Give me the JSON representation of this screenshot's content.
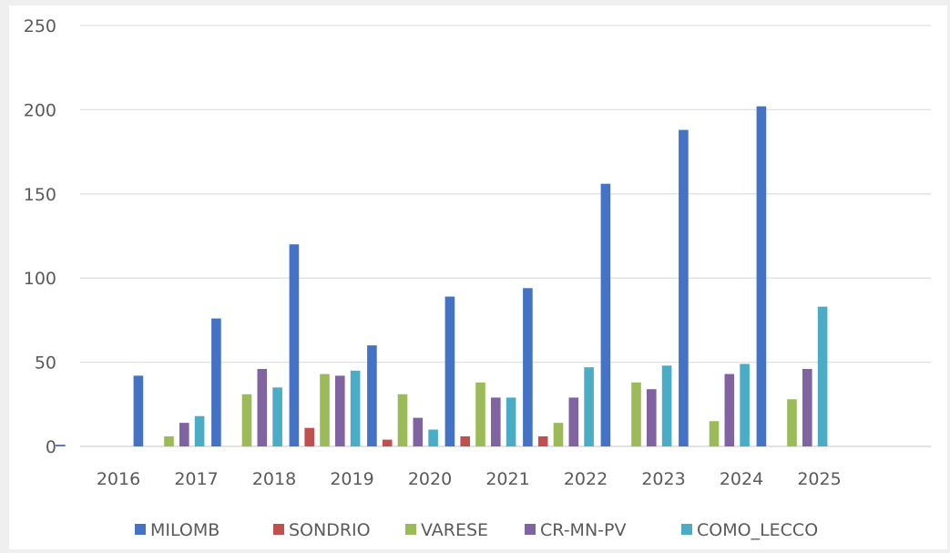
{
  "chart_data": {
    "type": "bar",
    "categories": [
      "2016",
      "2017",
      "2018",
      "2019",
      "2020",
      "2021",
      "2022",
      "2023",
      "2024",
      "2025"
    ],
    "series": [
      {
        "name": "MILOMB",
        "color": "#4472c4",
        "values": [
          1,
          42,
          76,
          120,
          60,
          89,
          94,
          156,
          188,
          202
        ]
      },
      {
        "name": "SONDRIO",
        "color": "#c0504d",
        "values": [
          0,
          0,
          0,
          11,
          4,
          6,
          6,
          0,
          0,
          0
        ]
      },
      {
        "name": "VARESE",
        "color": "#9bbb59",
        "values": [
          0,
          6,
          31,
          43,
          31,
          38,
          14,
          38,
          15,
          28
        ]
      },
      {
        "name": "CR-MN-PV",
        "color": "#8064a2",
        "values": [
          0,
          14,
          46,
          42,
          17,
          29,
          29,
          34,
          43,
          46
        ]
      },
      {
        "name": "COMO_LECCO",
        "color": "#4bacc6",
        "values": [
          0,
          18,
          35,
          45,
          10,
          29,
          47,
          48,
          49,
          83
        ]
      }
    ],
    "ylim": [
      0,
      250
    ],
    "yticks": [
      "0",
      "50",
      "100",
      "150",
      "200",
      "250"
    ],
    "grid": true,
    "legend": "bottom"
  }
}
